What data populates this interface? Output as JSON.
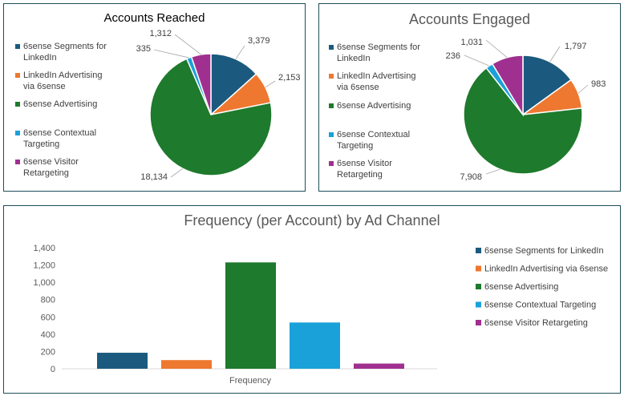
{
  "colors": {
    "segments_linkedin": "#1b5a7e",
    "linkedin_advertising": "#ee7830",
    "sixsense_advertising": "#1e7a2c",
    "contextual_targeting": "#1aa1d9",
    "visitor_retargeting": "#a0308f"
  },
  "chart_data": [
    {
      "type": "pie",
      "title": "Accounts Reached",
      "labels": [
        "6sense Segments for LinkedIn",
        "LinkedIn Advertising via 6sense",
        "6sense Advertising",
        "6sense Contextual Targeting",
        "6sense Visitor Retargeting"
      ],
      "legend_lines": [
        [
          "6sense Segments for",
          "LinkedIn"
        ],
        [
          "LinkedIn Advertising",
          "via 6sense"
        ],
        [
          "6sense Advertising"
        ],
        [
          "6sense Contextual",
          "Targeting"
        ],
        [
          "6sense Visitor",
          "Retargeting"
        ]
      ],
      "values": [
        3379,
        2153,
        18134,
        335,
        1312
      ],
      "value_labels": [
        "3,379",
        "2,153",
        "18,134",
        "335",
        "1,312"
      ],
      "legend_position": "left"
    },
    {
      "type": "pie",
      "title": "Accounts Engaged",
      "labels": [
        "6sense Segments for LinkedIn",
        "LinkedIn Advertising via 6sense",
        "6sense Advertising",
        "6sense Contextual Targeting",
        "6sense Visitor Retargeting"
      ],
      "legend_lines": [
        [
          "6sense Segments for",
          "LinkedIn"
        ],
        [
          "LinkedIn Advertising",
          "via 6sense"
        ],
        [
          "6sense Advertising"
        ],
        [
          "6sense Contextual",
          "Targeting"
        ],
        [
          "6sense Visitor",
          "Retargeting"
        ]
      ],
      "values": [
        1797,
        983,
        7908,
        236,
        1031
      ],
      "value_labels": [
        "1,797",
        "983",
        "7,908",
        "236",
        "1,031"
      ],
      "legend_position": "left"
    },
    {
      "type": "bar",
      "title": "Frequency (per Account) by Ad Channel",
      "categories": [
        "Frequency"
      ],
      "series": [
        {
          "name": "6sense Segments for LinkedIn",
          "values": [
            185
          ]
        },
        {
          "name": "LinkedIn Advertising via 6sense",
          "values": [
            100
          ]
        },
        {
          "name": "6sense Advertising",
          "values": [
            1230
          ]
        },
        {
          "name": "6sense Contextual Targeting",
          "values": [
            535
          ]
        },
        {
          "name": "6sense Visitor Retargeting",
          "values": [
            60
          ]
        }
      ],
      "ylim": [
        0,
        1400
      ],
      "yticks": [
        0,
        200,
        400,
        600,
        800,
        1000,
        1200,
        1400
      ],
      "ytick_labels": [
        "0",
        "200",
        "400",
        "600",
        "800",
        "1,000",
        "1,200",
        "1,400"
      ],
      "grid": false,
      "legend_position": "right"
    }
  ]
}
